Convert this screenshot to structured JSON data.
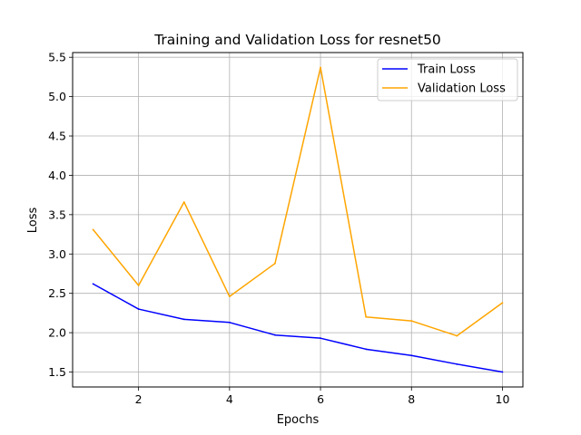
{
  "chart_data": {
    "type": "line",
    "title": "Training and Validation Loss for resnet50",
    "xlabel": "Epochs",
    "ylabel": "Loss",
    "x": [
      1,
      2,
      3,
      4,
      5,
      6,
      7,
      8,
      9,
      10
    ],
    "xlim": [
      0.55,
      10.45
    ],
    "ylim": [
      1.31,
      5.56
    ],
    "xticks": [
      2,
      4,
      6,
      8,
      10
    ],
    "yticks": [
      1.5,
      2.0,
      2.5,
      3.0,
      3.5,
      4.0,
      4.5,
      5.0,
      5.5
    ],
    "ytick_labels": [
      "1.5",
      "2.0",
      "2.5",
      "3.0",
      "3.5",
      "4.0",
      "4.5",
      "5.0",
      "5.5"
    ],
    "grid": true,
    "legend_position": "top-right",
    "series": [
      {
        "name": "Train Loss",
        "color": "#0000ff",
        "values": [
          2.62,
          2.3,
          2.17,
          2.13,
          1.97,
          1.93,
          1.79,
          1.71,
          1.6,
          1.5
        ]
      },
      {
        "name": "Validation Loss",
        "color": "#ffa500",
        "values": [
          3.31,
          2.6,
          3.66,
          2.46,
          2.88,
          5.37,
          2.2,
          2.15,
          1.96,
          2.38
        ]
      }
    ]
  }
}
